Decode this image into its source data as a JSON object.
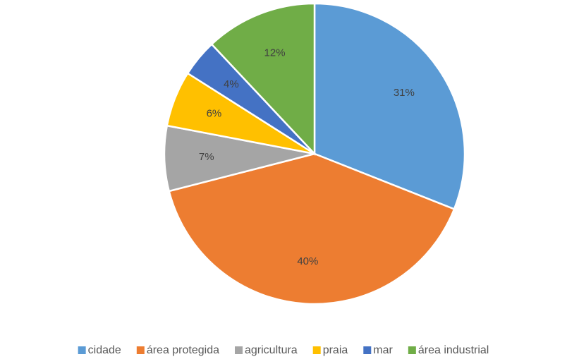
{
  "chart_data": {
    "type": "pie",
    "categories": [
      "cidade",
      "área protegida",
      "agricultura",
      "praia",
      "mar",
      "área industrial"
    ],
    "values": [
      31,
      40,
      7,
      6,
      4,
      12
    ],
    "value_labels": [
      "31%",
      "40%",
      "7%",
      "6%",
      "4%",
      "12%"
    ],
    "colors": [
      "#5b9bd5",
      "#ed7d31",
      "#a5a5a5",
      "#ffc000",
      "#4472c4",
      "#70ad47"
    ],
    "legend": "bottom"
  }
}
